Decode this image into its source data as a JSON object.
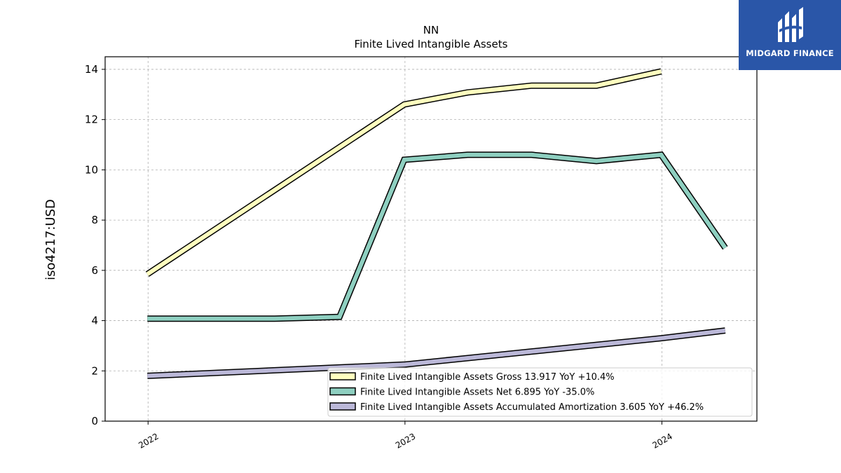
{
  "chart_data": {
    "type": "line",
    "title": "NN",
    "subtitle": "Finite Lived Intangible Assets",
    "ylabel": "iso4217:USD",
    "xlabel": "",
    "xlim": [
      "2021-11-01",
      "2024-05-15"
    ],
    "ylim": [
      0,
      14.5
    ],
    "yticks": [
      0,
      2,
      4,
      6,
      8,
      10,
      12,
      14
    ],
    "xticks": [
      {
        "date": "2022-01-01",
        "label": "2022"
      },
      {
        "date": "2023-01-01",
        "label": "2023"
      },
      {
        "date": "2024-01-01",
        "label": "2024"
      }
    ],
    "grid": true,
    "legend_position": "lower-right",
    "series": [
      {
        "name": "Finite Lived Intangible Assets Gross",
        "legend_label": "Finite Lived Intangible Assets Gross  13.917 YoY +10.4%",
        "color": "#ffffbf",
        "points": [
          {
            "x": "2021-12-31",
            "y": 5.85
          },
          {
            "x": "2022-12-31",
            "y": 12.6
          },
          {
            "x": "2023-03-31",
            "y": 13.08
          },
          {
            "x": "2023-06-30",
            "y": 13.35
          },
          {
            "x": "2023-09-30",
            "y": 13.35
          },
          {
            "x": "2023-12-31",
            "y": 13.917
          }
        ]
      },
      {
        "name": "Finite Lived Intangible Assets Net",
        "legend_label": "Finite Lived Intangible Assets Net  6.895 YoY -35.0%",
        "color": "#8ecfc0",
        "points": [
          {
            "x": "2021-12-31",
            "y": 4.08
          },
          {
            "x": "2022-06-30",
            "y": 4.08
          },
          {
            "x": "2022-09-30",
            "y": 4.15
          },
          {
            "x": "2022-12-31",
            "y": 10.4
          },
          {
            "x": "2023-03-31",
            "y": 10.6
          },
          {
            "x": "2023-06-30",
            "y": 10.6
          },
          {
            "x": "2023-09-30",
            "y": 10.35
          },
          {
            "x": "2023-12-31",
            "y": 10.6
          },
          {
            "x": "2024-03-31",
            "y": 6.895
          }
        ]
      },
      {
        "name": "Finite Lived Intangible Assets Accumulated Amortization",
        "legend_label": "Finite Lived Intangible Assets Accumulated Amortization  3.605 YoY +46.2%",
        "color": "#bbb8d8",
        "points": [
          {
            "x": "2021-12-31",
            "y": 1.8
          },
          {
            "x": "2022-12-31",
            "y": 2.25
          },
          {
            "x": "2023-12-31",
            "y": 3.3
          },
          {
            "x": "2024-03-31",
            "y": 3.605
          }
        ]
      }
    ]
  },
  "logo": {
    "text": "MIDGARD FINANCE",
    "background": "#2a56a8"
  }
}
